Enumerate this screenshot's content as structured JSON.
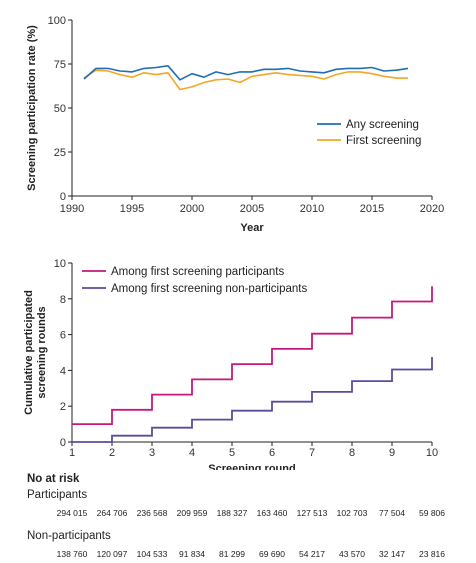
{
  "chart_data": [
    {
      "type": "line",
      "xlabel": "Year",
      "ylabel": "Screening participation rate (%)",
      "xlim": [
        1990,
        2020
      ],
      "ylim": [
        0,
        100
      ],
      "xticks": [
        "1990",
        "1995",
        "2000",
        "2005",
        "2010",
        "2015",
        "2020"
      ],
      "yticks": [
        "0",
        "25",
        "50",
        "75",
        "100"
      ],
      "legend_position": "bottom-right",
      "grid": false,
      "x": [
        1991,
        1992,
        1993,
        1994,
        1995,
        1996,
        1997,
        1998,
        1999,
        2000,
        2001,
        2002,
        2003,
        2004,
        2005,
        2006,
        2007,
        2008,
        2009,
        2010,
        2011,
        2012,
        2013,
        2014,
        2015,
        2016,
        2017,
        2018
      ],
      "series": [
        {
          "name": "Any screening",
          "color": "#1f6fb2",
          "values": [
            66.5,
            72.5,
            72.5,
            71,
            70.5,
            72.5,
            73,
            74,
            66,
            69.5,
            67.5,
            70.5,
            69,
            70.5,
            70.5,
            72,
            72,
            72.5,
            71,
            70.5,
            70,
            72,
            72.5,
            72.5,
            73,
            71,
            71.5,
            72.5
          ]
        },
        {
          "name": "First screening",
          "color": "#f5a623",
          "values": [
            67,
            71.5,
            71,
            69,
            67.5,
            70,
            69,
            70,
            60.5,
            62,
            64.5,
            66,
            66.5,
            64.5,
            68,
            69,
            70,
            69,
            68.5,
            68,
            66.5,
            69,
            70.5,
            70.5,
            69.5,
            68,
            67,
            67
          ]
        }
      ]
    },
    {
      "type": "line",
      "xlabel": "Screening round",
      "ylabel": "Cumulative participated screening rounds",
      "xlim": [
        1,
        10
      ],
      "ylim": [
        0,
        10
      ],
      "xticks": [
        "1",
        "2",
        "3",
        "4",
        "5",
        "6",
        "7",
        "8",
        "9",
        "10"
      ],
      "yticks": [
        "0",
        "2",
        "4",
        "6",
        "8",
        "10"
      ],
      "legend_position": "top-left",
      "grid": false,
      "step": true,
      "series": [
        {
          "name": "Among first screening participants",
          "color": "#c8177c",
          "x": [
            1,
            2,
            3,
            4,
            5,
            6,
            7,
            8,
            9,
            10
          ],
          "values": [
            1.0,
            1.8,
            2.65,
            3.5,
            4.35,
            5.2,
            6.05,
            6.95,
            7.85,
            8.7
          ]
        },
        {
          "name": "Among first screening non-participants",
          "color": "#5e4a9c",
          "x": [
            1,
            2,
            3,
            4,
            5,
            6,
            7,
            8,
            9,
            10
          ],
          "values": [
            0.0,
            0.35,
            0.8,
            1.25,
            1.75,
            2.25,
            2.8,
            3.4,
            4.05,
            4.75
          ]
        }
      ]
    }
  ],
  "risk_table": {
    "title": "No at risk",
    "rows": [
      {
        "label": "Participants",
        "values": [
          "294 015",
          "264 706",
          "236 568",
          "209 959",
          "188 327",
          "163 460",
          "127 513",
          "102 703",
          "77 504",
          "59 806"
        ]
      },
      {
        "label": "Non-participants",
        "values": [
          "138 760",
          "120 097",
          "104 533",
          "91 834",
          "81 299",
          "69 690",
          "54 217",
          "43 570",
          "32 147",
          "23 816"
        ]
      }
    ]
  }
}
